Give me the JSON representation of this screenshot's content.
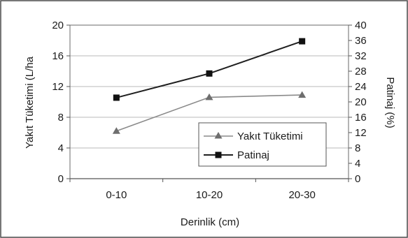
{
  "chart_data": {
    "type": "line",
    "categories": [
      "0-10",
      "10-20",
      "20-30"
    ],
    "series": [
      {
        "name": "Yakıt Tüketimi",
        "axis": "left",
        "values": [
          6.2,
          10.6,
          10.9
        ],
        "marker": "triangle",
        "color": "#8a8a8a",
        "marker_color": "#6e6e6e"
      },
      {
        "name": "Patinaj",
        "axis": "right",
        "values": [
          21.1,
          27.4,
          35.8
        ],
        "marker": "square",
        "color": "#1f1f1f",
        "marker_color": "#111111"
      }
    ],
    "xlabel": "Derinlik (cm)",
    "ylabel_left": "Yakıt Tüketimi (L/ha",
    "ylabel_right": "Patinaj (%)",
    "ylim_left": [
      0,
      20
    ],
    "yticks_left": [
      "0",
      "4",
      "8",
      "12",
      "16",
      "20"
    ],
    "ylim_right": [
      0,
      40
    ],
    "yticks_right": [
      "0",
      "4",
      "8",
      "12",
      "16",
      "20",
      "24",
      "28",
      "32",
      "36",
      "40"
    ],
    "grid": true,
    "legend": {
      "placement": "bottom-right inside plot",
      "entries": [
        "Yakıt Tüketimi",
        "Patinaj"
      ]
    }
  }
}
